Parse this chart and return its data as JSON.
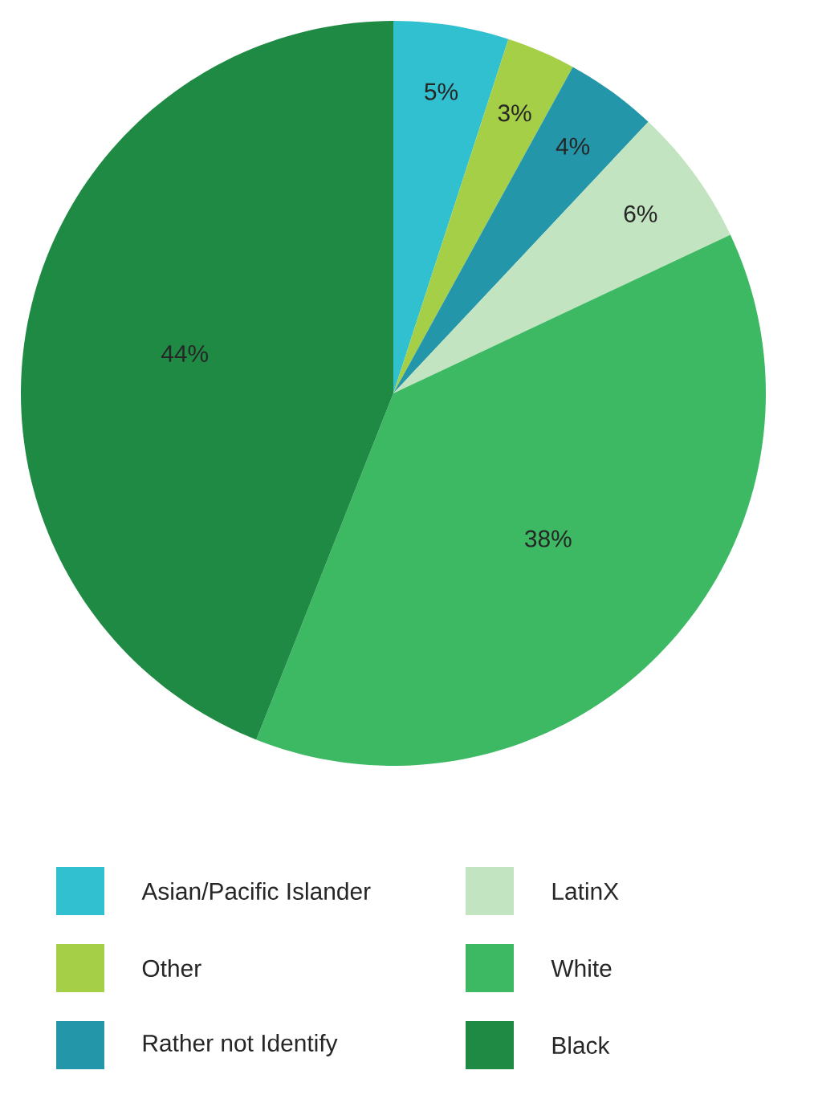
{
  "chart_data": {
    "type": "pie",
    "categories": [
      "Asian/Pacific Islander",
      "Other",
      "Rather not Identify",
      "LatinX",
      "White",
      "Black"
    ],
    "values": [
      5,
      3,
      4,
      6,
      38,
      44
    ],
    "value_labels": [
      "5%",
      "3%",
      "4%",
      "6%",
      "38%",
      "44%"
    ],
    "colors": [
      "#30c0d0",
      "#a6cf48",
      "#2496aa",
      "#c3e4c0",
      "#3db863",
      "#1f8a44"
    ],
    "legend": "bottom"
  }
}
